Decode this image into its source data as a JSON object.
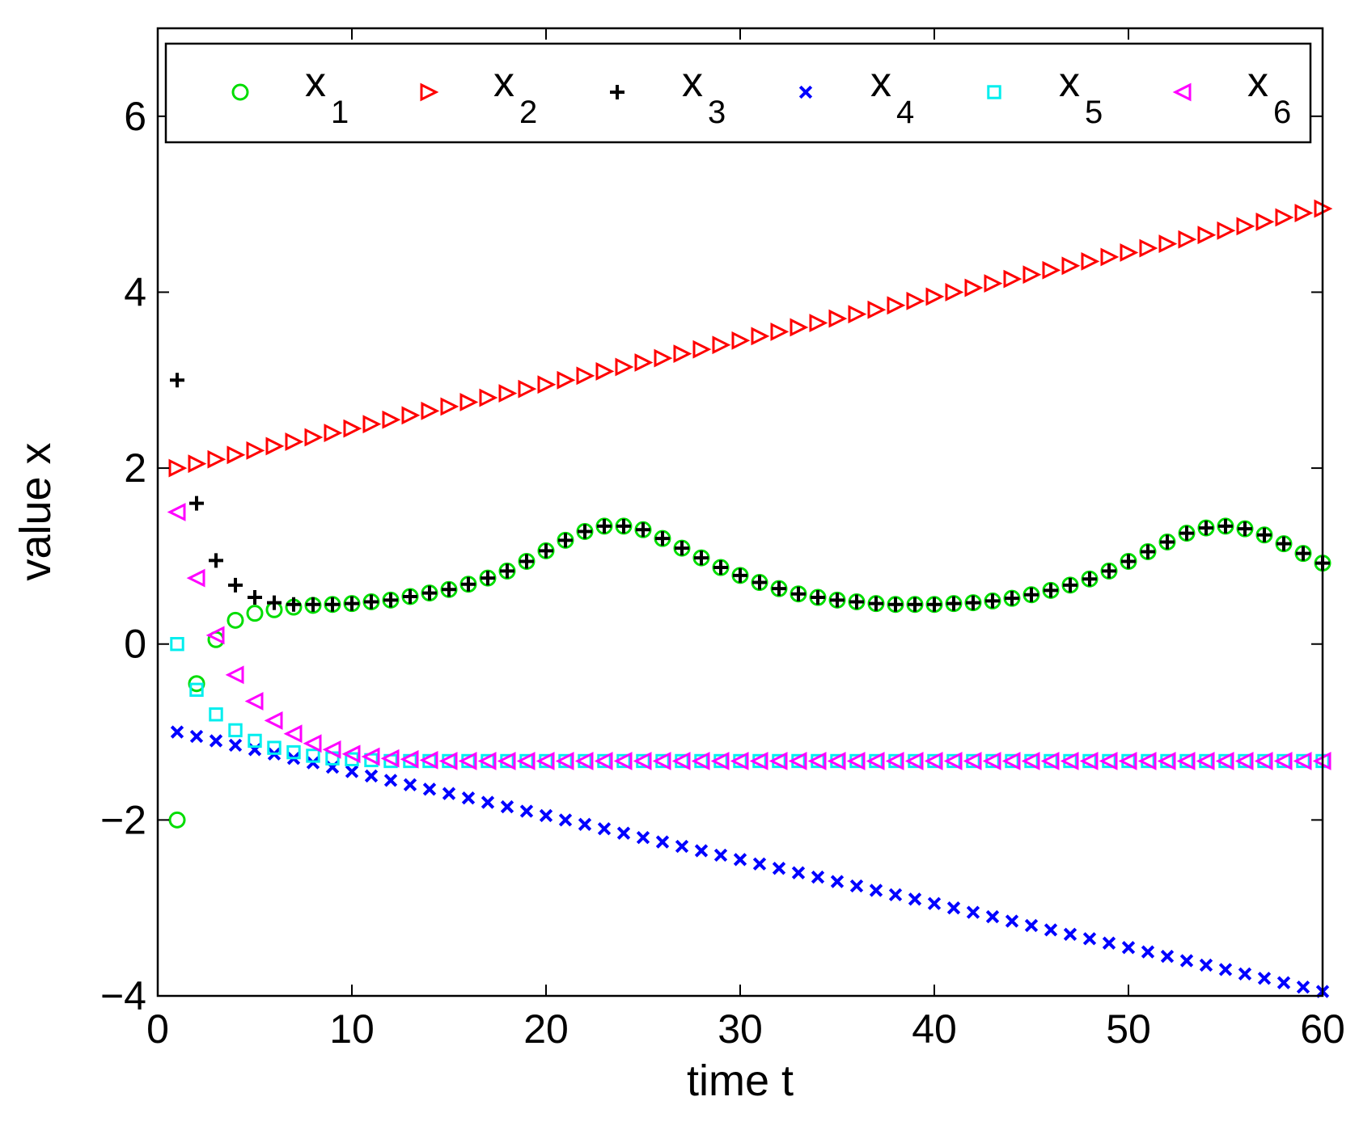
{
  "chart_data": {
    "type": "scatter",
    "title": "",
    "xlabel": "time t",
    "ylabel": "value x",
    "xlim": [
      0,
      60
    ],
    "ylim": [
      -4,
      7
    ],
    "xticks": [
      0,
      10,
      20,
      30,
      40,
      50,
      60
    ],
    "yticks": [
      -4,
      -2,
      0,
      2,
      4,
      6
    ],
    "x_tick_labels": [
      "0",
      "10",
      "20",
      "30",
      "40",
      "50",
      "60"
    ],
    "y_tick_labels": [
      "−4",
      "−2",
      "0",
      "2",
      "4",
      "6"
    ],
    "grid": false,
    "legend_position": "top",
    "x": [
      1,
      2,
      3,
      4,
      5,
      6,
      7,
      8,
      9,
      10,
      11,
      12,
      13,
      14,
      15,
      16,
      17,
      18,
      19,
      20,
      21,
      22,
      23,
      24,
      25,
      26,
      27,
      28,
      29,
      30,
      31,
      32,
      33,
      34,
      35,
      36,
      37,
      38,
      39,
      40,
      41,
      42,
      43,
      44,
      45,
      46,
      47,
      48,
      49,
      50,
      51,
      52,
      53,
      54,
      55,
      56,
      57,
      58,
      59,
      60
    ],
    "series": [
      {
        "name": "x",
        "subscript": "1",
        "color": "#00dd00",
        "marker": "circle",
        "values": [
          -2.0,
          -0.45,
          0.05,
          0.27,
          0.35,
          0.39,
          0.42,
          0.44,
          0.45,
          0.46,
          0.48,
          0.5,
          0.54,
          0.58,
          0.62,
          0.68,
          0.75,
          0.83,
          0.94,
          1.06,
          1.18,
          1.28,
          1.34,
          1.34,
          1.3,
          1.2,
          1.09,
          0.98,
          0.87,
          0.78,
          0.7,
          0.63,
          0.57,
          0.53,
          0.5,
          0.48,
          0.46,
          0.45,
          0.45,
          0.45,
          0.46,
          0.47,
          0.49,
          0.52,
          0.56,
          0.61,
          0.67,
          0.74,
          0.83,
          0.94,
          1.05,
          1.16,
          1.26,
          1.32,
          1.34,
          1.31,
          1.24,
          1.14,
          1.03,
          0.92
        ]
      },
      {
        "name": "x",
        "subscript": "2",
        "color": "#ff0000",
        "marker": "triangle-right",
        "values": [
          2.0,
          2.05,
          2.1,
          2.15,
          2.2,
          2.25,
          2.3,
          2.35,
          2.4,
          2.45,
          2.5,
          2.55,
          2.6,
          2.65,
          2.7,
          2.75,
          2.8,
          2.85,
          2.9,
          2.95,
          3.0,
          3.05,
          3.1,
          3.15,
          3.2,
          3.25,
          3.3,
          3.35,
          3.4,
          3.45,
          3.5,
          3.55,
          3.6,
          3.65,
          3.7,
          3.75,
          3.8,
          3.85,
          3.9,
          3.95,
          4.0,
          4.05,
          4.1,
          4.15,
          4.2,
          4.25,
          4.3,
          4.35,
          4.4,
          4.45,
          4.5,
          4.55,
          4.6,
          4.65,
          4.7,
          4.75,
          4.8,
          4.85,
          4.9,
          4.95
        ]
      },
      {
        "name": "x",
        "subscript": "3",
        "color": "#000000",
        "marker": "plus",
        "values": [
          3.0,
          1.6,
          0.95,
          0.67,
          0.53,
          0.47,
          0.45,
          0.45,
          0.45,
          0.46,
          0.48,
          0.5,
          0.54,
          0.58,
          0.62,
          0.68,
          0.75,
          0.83,
          0.94,
          1.06,
          1.18,
          1.28,
          1.34,
          1.34,
          1.3,
          1.2,
          1.09,
          0.98,
          0.87,
          0.78,
          0.7,
          0.63,
          0.57,
          0.53,
          0.5,
          0.48,
          0.46,
          0.45,
          0.45,
          0.45,
          0.46,
          0.47,
          0.49,
          0.52,
          0.56,
          0.61,
          0.67,
          0.74,
          0.83,
          0.94,
          1.05,
          1.16,
          1.26,
          1.32,
          1.34,
          1.31,
          1.24,
          1.14,
          1.03,
          0.92
        ]
      },
      {
        "name": "x",
        "subscript": "4",
        "color": "#0000ff",
        "marker": "x",
        "values": [
          -1.0,
          -1.05,
          -1.1,
          -1.15,
          -1.2,
          -1.25,
          -1.3,
          -1.35,
          -1.4,
          -1.45,
          -1.5,
          -1.55,
          -1.6,
          -1.65,
          -1.7,
          -1.75,
          -1.8,
          -1.85,
          -1.9,
          -1.95,
          -2.0,
          -2.05,
          -2.1,
          -2.15,
          -2.2,
          -2.25,
          -2.3,
          -2.35,
          -2.4,
          -2.45,
          -2.5,
          -2.55,
          -2.6,
          -2.65,
          -2.7,
          -2.75,
          -2.8,
          -2.85,
          -2.9,
          -2.95,
          -3.0,
          -3.05,
          -3.1,
          -3.15,
          -3.2,
          -3.25,
          -3.3,
          -3.35,
          -3.4,
          -3.45,
          -3.5,
          -3.55,
          -3.6,
          -3.65,
          -3.7,
          -3.75,
          -3.8,
          -3.85,
          -3.9,
          -3.95
        ]
      },
      {
        "name": "x",
        "subscript": "5",
        "color": "#00eeee",
        "marker": "square",
        "values": [
          0.0,
          -0.52,
          -0.8,
          -0.98,
          -1.1,
          -1.18,
          -1.23,
          -1.27,
          -1.3,
          -1.31,
          -1.32,
          -1.33,
          -1.33,
          -1.33,
          -1.33,
          -1.33,
          -1.33,
          -1.33,
          -1.33,
          -1.33,
          -1.33,
          -1.33,
          -1.33,
          -1.33,
          -1.33,
          -1.33,
          -1.33,
          -1.33,
          -1.33,
          -1.33,
          -1.33,
          -1.33,
          -1.33,
          -1.33,
          -1.33,
          -1.33,
          -1.33,
          -1.33,
          -1.33,
          -1.33,
          -1.33,
          -1.33,
          -1.33,
          -1.33,
          -1.33,
          -1.33,
          -1.33,
          -1.33,
          -1.33,
          -1.33,
          -1.33,
          -1.33,
          -1.33,
          -1.33,
          -1.33,
          -1.33,
          -1.33,
          -1.33,
          -1.33,
          -1.33
        ]
      },
      {
        "name": "x",
        "subscript": "6",
        "color": "#ff00ff",
        "marker": "triangle-left",
        "values": [
          1.5,
          0.75,
          0.1,
          -0.35,
          -0.65,
          -0.87,
          -1.02,
          -1.13,
          -1.2,
          -1.25,
          -1.28,
          -1.3,
          -1.31,
          -1.32,
          -1.33,
          -1.33,
          -1.33,
          -1.33,
          -1.33,
          -1.33,
          -1.33,
          -1.33,
          -1.33,
          -1.33,
          -1.33,
          -1.33,
          -1.33,
          -1.33,
          -1.33,
          -1.33,
          -1.33,
          -1.33,
          -1.33,
          -1.33,
          -1.33,
          -1.33,
          -1.33,
          -1.33,
          -1.33,
          -1.33,
          -1.33,
          -1.33,
          -1.33,
          -1.33,
          -1.33,
          -1.33,
          -1.33,
          -1.33,
          -1.33,
          -1.33,
          -1.33,
          -1.33,
          -1.33,
          -1.33,
          -1.33,
          -1.33,
          -1.33,
          -1.33,
          -1.33,
          -1.33
        ]
      }
    ]
  }
}
